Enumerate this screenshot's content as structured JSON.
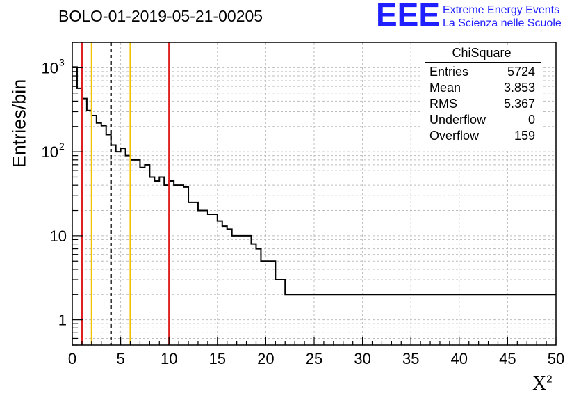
{
  "title": "BOLO-01-2019-05-21-00205",
  "logo": {
    "mark": "EEE",
    "line1": "Extreme Energy Events",
    "line2": "La Scienza nelle Scuole",
    "color": "#1f1fff"
  },
  "stats_box": {
    "title": "ChiSquare",
    "rows": [
      {
        "key": "Entries",
        "value": "5724"
      },
      {
        "key": "Mean",
        "value": "3.853"
      },
      {
        "key": "RMS",
        "value": "5.367"
      },
      {
        "key": "Underflow",
        "value": "0"
      },
      {
        "key": "Overflow",
        "value": "159"
      }
    ]
  },
  "chart_data": {
    "type": "histogram",
    "title": "BOLO-01-2019-05-21-00205",
    "xlabel": "X",
    "xlabel_superscript": "2",
    "ylabel": "Entries/bin",
    "xlim": [
      0,
      50
    ],
    "ylim": [
      0.5,
      2000
    ],
    "yscale": "log",
    "grid": true,
    "bin_width": 0.5,
    "x_ticks": [
      "0",
      "5",
      "10",
      "15",
      "20",
      "25",
      "30",
      "35",
      "40",
      "45",
      "50"
    ],
    "y_ticks": [
      {
        "value": 1,
        "label": "1"
      },
      {
        "value": 10,
        "label": "10"
      },
      {
        "value": 100,
        "label": "10",
        "exp": "2"
      },
      {
        "value": 1000,
        "label": "10",
        "exp": "3"
      }
    ],
    "bin_values": [
      1020,
      570,
      430,
      310,
      270,
      220,
      205,
      160,
      120,
      100,
      110,
      90,
      80,
      80,
      65,
      70,
      50,
      45,
      50,
      40,
      45,
      40,
      40,
      38,
      25,
      25,
      20,
      20,
      18,
      18,
      15,
      13,
      12,
      10,
      10,
      10,
      10,
      8,
      7,
      5,
      5,
      5,
      3,
      3,
      2,
      2,
      2,
      2,
      2,
      2,
      2,
      2,
      2,
      2,
      2,
      2,
      2,
      2,
      2,
      2,
      2,
      2,
      2,
      2,
      2,
      2,
      2,
      2,
      2,
      2,
      2,
      2,
      2,
      2,
      2,
      2,
      2,
      2,
      2,
      2,
      2,
      2,
      2,
      2,
      2,
      2,
      2,
      2,
      2,
      2,
      2,
      2,
      2,
      2,
      2,
      2,
      2,
      2,
      2,
      2
    ],
    "vertical_lines": [
      {
        "x": 1,
        "color": "#e02020",
        "style": "solid"
      },
      {
        "x": 2,
        "color": "#f2c200",
        "style": "solid"
      },
      {
        "x": 4,
        "color": "#000000",
        "style": "dashed"
      },
      {
        "x": 6,
        "color": "#f2c200",
        "style": "solid"
      },
      {
        "x": 10,
        "color": "#e02020",
        "style": "solid"
      }
    ]
  }
}
